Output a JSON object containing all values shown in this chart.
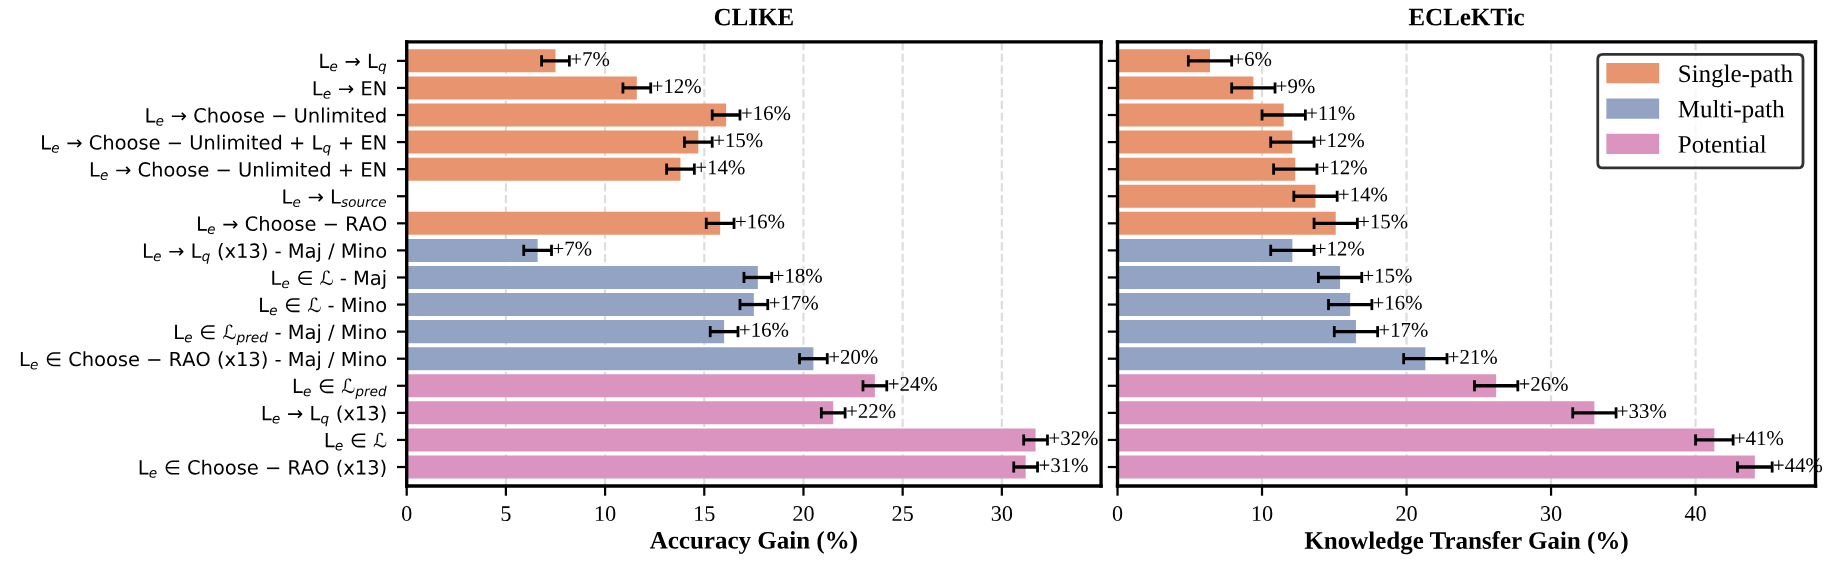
{
  "chart_data": [
    {
      "type": "bar",
      "orientation": "horizontal",
      "title": "CLIKE",
      "xlabel": "Accuracy Gain (%)",
      "categories": [
        "L$_{e}$ → L$_{q}$",
        "L$_{e}$ → EN",
        "L$_{e}$ → Choose − Unlimited",
        "L$_{e}$ → Choose − Unlimited + L$_{q}$ + EN",
        "L$_{e}$ → Choose − Unlimited + EN",
        "L$_{e}$ → L$_{source}$",
        "L$_{e}$ → Choose − RAO",
        "L$_{e}$ → L$_{q}$ (x13) - Maj / Mino",
        "L$_{e}$ ∈ ℒ - Maj",
        "L$_{e}$ ∈ ℒ - Mino",
        "L$_{e}$ ∈ ℒ$_{pred}$ - Maj / Mino",
        "L$_{e}$ ∈ Choose − RAO (x13) - Maj / Mino",
        "L$_{e}$ ∈ ℒ$_{pred}$",
        "L$_{e}$ → L$_{q}$ (x13)",
        "L$_{e}$ ∈ ℒ",
        "L$_{e}$ ∈ Choose − RAO (x13)"
      ],
      "series": [
        {
          "color": "#e8956f",
          "values": [
            7.5,
            11.6,
            16.1,
            14.7,
            13.8,
            null,
            15.8,
            null,
            null,
            null,
            null,
            null,
            null,
            null,
            null,
            null
          ],
          "errors": [
            0.7,
            0.7,
            0.7,
            0.7,
            0.7,
            null,
            0.7,
            null,
            null,
            null,
            null,
            null,
            null,
            null,
            null,
            null
          ],
          "value_labels": [
            "+7%",
            "+12%",
            "+16%",
            "+15%",
            "+14%",
            null,
            "+16%",
            null,
            null,
            null,
            null,
            null,
            null,
            null,
            null,
            null
          ]
        },
        {
          "color": "#92a3c4",
          "values": [
            null,
            null,
            null,
            null,
            null,
            null,
            null,
            6.6,
            17.7,
            17.5,
            16.0,
            20.5,
            null,
            null,
            null,
            null
          ],
          "errors": [
            null,
            null,
            null,
            null,
            null,
            null,
            null,
            0.7,
            0.7,
            0.7,
            0.7,
            0.7,
            null,
            null,
            null,
            null
          ],
          "value_labels": [
            null,
            null,
            null,
            null,
            null,
            null,
            null,
            "+7%",
            "+18%",
            "+17%",
            "+16%",
            "+20%",
            null,
            null,
            null,
            null
          ]
        },
        {
          "color": "#db93bf",
          "values": [
            null,
            null,
            null,
            null,
            null,
            null,
            null,
            null,
            null,
            null,
            null,
            null,
            23.6,
            21.5,
            31.7,
            31.2
          ],
          "errors": [
            null,
            null,
            null,
            null,
            null,
            null,
            null,
            null,
            null,
            null,
            null,
            null,
            0.6,
            0.6,
            0.6,
            0.6
          ],
          "value_labels": [
            null,
            null,
            null,
            null,
            null,
            null,
            null,
            null,
            null,
            null,
            null,
            null,
            "+24%",
            "+22%",
            "+32%",
            "+31%"
          ]
        }
      ],
      "xlim": [
        0,
        35
      ],
      "xticks": [
        0,
        5,
        10,
        15,
        20,
        25,
        30
      ],
      "grid": "x"
    },
    {
      "type": "bar",
      "orientation": "horizontal",
      "title": "ECLeKTic",
      "xlabel": "Knowledge Transfer Gain (%)",
      "categories": [
        null,
        null,
        null,
        null,
        null,
        null,
        null,
        null,
        null,
        null,
        null,
        null,
        null,
        null,
        null,
        null
      ],
      "series": [
        {
          "name": "Single-path",
          "color": "#e8956f",
          "values": [
            6.4,
            9.4,
            11.5,
            12.1,
            12.3,
            13.7,
            15.1,
            null,
            null,
            null,
            null,
            null,
            null,
            null,
            null,
            null
          ],
          "errors": [
            1.5,
            1.5,
            1.5,
            1.5,
            1.5,
            1.5,
            1.5,
            null,
            null,
            null,
            null,
            null,
            null,
            null,
            null,
            null
          ],
          "value_labels": [
            "+6%",
            "+9%",
            "+11%",
            "+12%",
            "+12%",
            "+14%",
            "+15%",
            null,
            null,
            null,
            null,
            null,
            null,
            null,
            null,
            null
          ]
        },
        {
          "name": "Multi-path",
          "color": "#92a3c4",
          "values": [
            null,
            null,
            null,
            null,
            null,
            null,
            null,
            12.1,
            15.4,
            16.1,
            16.5,
            21.3,
            null,
            null,
            null,
            null
          ],
          "errors": [
            null,
            null,
            null,
            null,
            null,
            null,
            null,
            1.5,
            1.5,
            1.5,
            1.5,
            1.5,
            null,
            null,
            null,
            null
          ],
          "value_labels": [
            null,
            null,
            null,
            null,
            null,
            null,
            null,
            "+12%",
            "+15%",
            "+16%",
            "+17%",
            "+21%",
            null,
            null,
            null,
            null
          ]
        },
        {
          "name": "Potential",
          "color": "#db93bf",
          "values": [
            null,
            null,
            null,
            null,
            null,
            null,
            null,
            null,
            null,
            null,
            null,
            null,
            26.2,
            33.0,
            41.3,
            44.1
          ],
          "errors": [
            null,
            null,
            null,
            null,
            null,
            null,
            null,
            null,
            null,
            null,
            null,
            null,
            1.5,
            1.5,
            1.3,
            1.2
          ],
          "value_labels": [
            null,
            null,
            null,
            null,
            null,
            null,
            null,
            null,
            null,
            null,
            null,
            null,
            "+26%",
            "+33%",
            "+41%",
            "+44%"
          ]
        }
      ],
      "xlim": [
        0,
        48.3
      ],
      "xticks": [
        0,
        10,
        20,
        30,
        40
      ],
      "grid": "x",
      "legend": "top right",
      "tick_labels": "x"
    }
  ]
}
